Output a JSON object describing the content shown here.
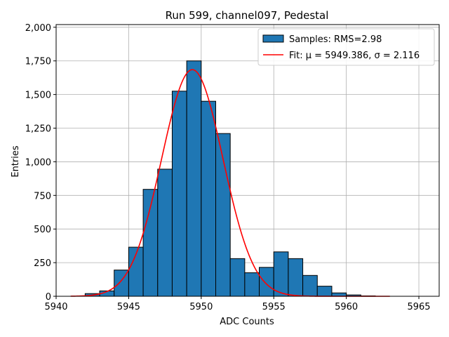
{
  "chart_data": {
    "type": "bar",
    "title": "Run 599, channel097, Pedestal",
    "xlabel": "ADC Counts",
    "ylabel": "Entries",
    "xlim": [
      5940,
      5966.4
    ],
    "ylim": [
      0,
      2020
    ],
    "xticks": [
      5940,
      5945,
      5950,
      5955,
      5960,
      5965
    ],
    "yticks": [
      0,
      250,
      500,
      750,
      1000,
      1250,
      1500,
      1750,
      2000
    ],
    "grid": true,
    "legend_position": "top-right",
    "legend": [
      {
        "label": "Samples: RMS=2.98",
        "kind": "patch",
        "color": "#1f77b4"
      },
      {
        "label": "Fit: μ = 5949.386, σ = 2.116",
        "kind": "line",
        "color": "#ff0000"
      }
    ],
    "series": [
      {
        "kind": "histogram",
        "color": "#1f77b4",
        "bin_width": 1,
        "bin_edges_start": 5942,
        "values": [
          20,
          40,
          195,
          365,
          795,
          945,
          1525,
          1750,
          1450,
          1210,
          280,
          175,
          215,
          330,
          280,
          155,
          75,
          25,
          10,
          3
        ]
      },
      {
        "kind": "gaussian_fit",
        "color": "#ff0000",
        "mu": 5949.386,
        "sigma": 2.116,
        "amplitude": 1685,
        "x_range": [
          5941,
          5963
        ]
      }
    ]
  }
}
